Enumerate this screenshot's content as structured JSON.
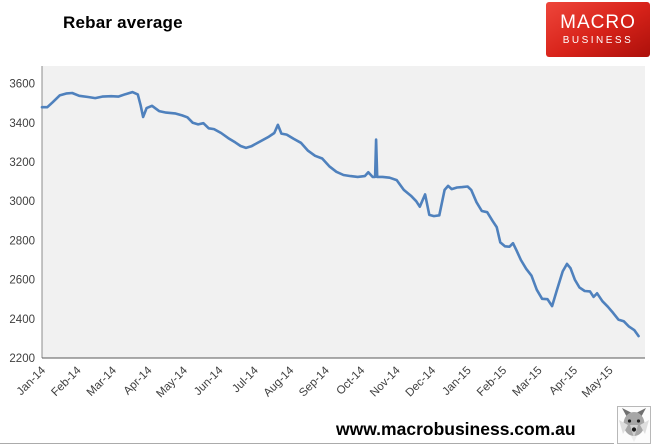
{
  "header": {
    "title": "Rebar average",
    "logo": {
      "line1": "MACRO",
      "line2": "BUSINESS",
      "bg_color": "#d8231a",
      "text_color": "#ffffff"
    }
  },
  "chart_data": {
    "type": "line",
    "title": "Rebar average",
    "xlabel": "",
    "ylabel": "",
    "x_tick_labels": [
      "Jan-14",
      "Feb-14",
      "Mar-14",
      "Apr-14",
      "May-14",
      "Jun-14",
      "Jul-14",
      "Aug-14",
      "Sep-14",
      "Oct-14",
      "Nov-14",
      "Dec-14",
      "Jan-15",
      "Feb-15",
      "Mar-15",
      "Apr-15",
      "May-15"
    ],
    "x_span_months": 17,
    "yticks": [
      2200,
      2400,
      2600,
      2800,
      3000,
      3200,
      3400,
      3600
    ],
    "ylim": [
      2200,
      3690
    ],
    "grid": false,
    "legend": "none",
    "plot_bg": "#f1f1f1",
    "axis_color_left": "#8c8c8c",
    "axis_color_bottom": "#595959",
    "tick_label_color": "#404040",
    "series": [
      {
        "name": "Rebar average",
        "color": "#4f81bd",
        "points": [
          [
            0.0,
            3480
          ],
          [
            0.15,
            3480
          ],
          [
            0.3,
            3505
          ],
          [
            0.5,
            3540
          ],
          [
            0.7,
            3550
          ],
          [
            0.85,
            3552
          ],
          [
            1.05,
            3538
          ],
          [
            1.3,
            3532
          ],
          [
            1.5,
            3526
          ],
          [
            1.7,
            3534
          ],
          [
            1.95,
            3536
          ],
          [
            2.15,
            3534
          ],
          [
            2.35,
            3546
          ],
          [
            2.55,
            3557
          ],
          [
            2.7,
            3545
          ],
          [
            2.78,
            3490
          ],
          [
            2.85,
            3430
          ],
          [
            2.95,
            3475
          ],
          [
            3.1,
            3487
          ],
          [
            3.3,
            3460
          ],
          [
            3.5,
            3452
          ],
          [
            3.75,
            3448
          ],
          [
            3.95,
            3438
          ],
          [
            4.1,
            3428
          ],
          [
            4.25,
            3400
          ],
          [
            4.4,
            3392
          ],
          [
            4.55,
            3398
          ],
          [
            4.7,
            3372
          ],
          [
            4.85,
            3368
          ],
          [
            5.05,
            3348
          ],
          [
            5.25,
            3322
          ],
          [
            5.45,
            3300
          ],
          [
            5.6,
            3282
          ],
          [
            5.75,
            3272
          ],
          [
            5.9,
            3280
          ],
          [
            6.05,
            3295
          ],
          [
            6.2,
            3310
          ],
          [
            6.4,
            3330
          ],
          [
            6.55,
            3348
          ],
          [
            6.65,
            3390
          ],
          [
            6.75,
            3345
          ],
          [
            6.9,
            3340
          ],
          [
            7.1,
            3318
          ],
          [
            7.3,
            3298
          ],
          [
            7.5,
            3258
          ],
          [
            7.7,
            3232
          ],
          [
            7.9,
            3218
          ],
          [
            8.1,
            3178
          ],
          [
            8.3,
            3150
          ],
          [
            8.5,
            3134
          ],
          [
            8.7,
            3128
          ],
          [
            8.9,
            3124
          ],
          [
            9.1,
            3128
          ],
          [
            9.2,
            3148
          ],
          [
            9.32,
            3124
          ],
          [
            9.39,
            3124
          ],
          [
            9.42,
            3315
          ],
          [
            9.45,
            3124
          ],
          [
            9.6,
            3124
          ],
          [
            9.8,
            3120
          ],
          [
            10.0,
            3108
          ],
          [
            10.2,
            3058
          ],
          [
            10.4,
            3028
          ],
          [
            10.55,
            3000
          ],
          [
            10.65,
            2972
          ],
          [
            10.8,
            3035
          ],
          [
            10.92,
            2930
          ],
          [
            11.05,
            2924
          ],
          [
            11.2,
            2928
          ],
          [
            11.35,
            3058
          ],
          [
            11.45,
            3078
          ],
          [
            11.55,
            3062
          ],
          [
            11.7,
            3070
          ],
          [
            11.85,
            3072
          ],
          [
            12.0,
            3075
          ],
          [
            12.1,
            3058
          ],
          [
            12.25,
            2995
          ],
          [
            12.4,
            2950
          ],
          [
            12.55,
            2944
          ],
          [
            12.7,
            2900
          ],
          [
            12.82,
            2868
          ],
          [
            12.92,
            2790
          ],
          [
            13.05,
            2770
          ],
          [
            13.18,
            2768
          ],
          [
            13.28,
            2786
          ],
          [
            13.38,
            2748
          ],
          [
            13.5,
            2700
          ],
          [
            13.65,
            2655
          ],
          [
            13.8,
            2620
          ],
          [
            13.95,
            2548
          ],
          [
            14.1,
            2502
          ],
          [
            14.25,
            2500
          ],
          [
            14.38,
            2465
          ],
          [
            14.52,
            2548
          ],
          [
            14.68,
            2642
          ],
          [
            14.8,
            2680
          ],
          [
            14.9,
            2658
          ],
          [
            15.02,
            2600
          ],
          [
            15.15,
            2560
          ],
          [
            15.3,
            2542
          ],
          [
            15.45,
            2540
          ],
          [
            15.55,
            2512
          ],
          [
            15.65,
            2530
          ],
          [
            15.8,
            2490
          ],
          [
            15.95,
            2462
          ],
          [
            16.1,
            2430
          ],
          [
            16.25,
            2396
          ],
          [
            16.4,
            2388
          ],
          [
            16.55,
            2360
          ],
          [
            16.7,
            2342
          ],
          [
            16.82,
            2312
          ]
        ]
      }
    ]
  },
  "footer": {
    "website": "www.macrobusiness.com.au",
    "wolf_icon": "wolf-logo-icon"
  }
}
